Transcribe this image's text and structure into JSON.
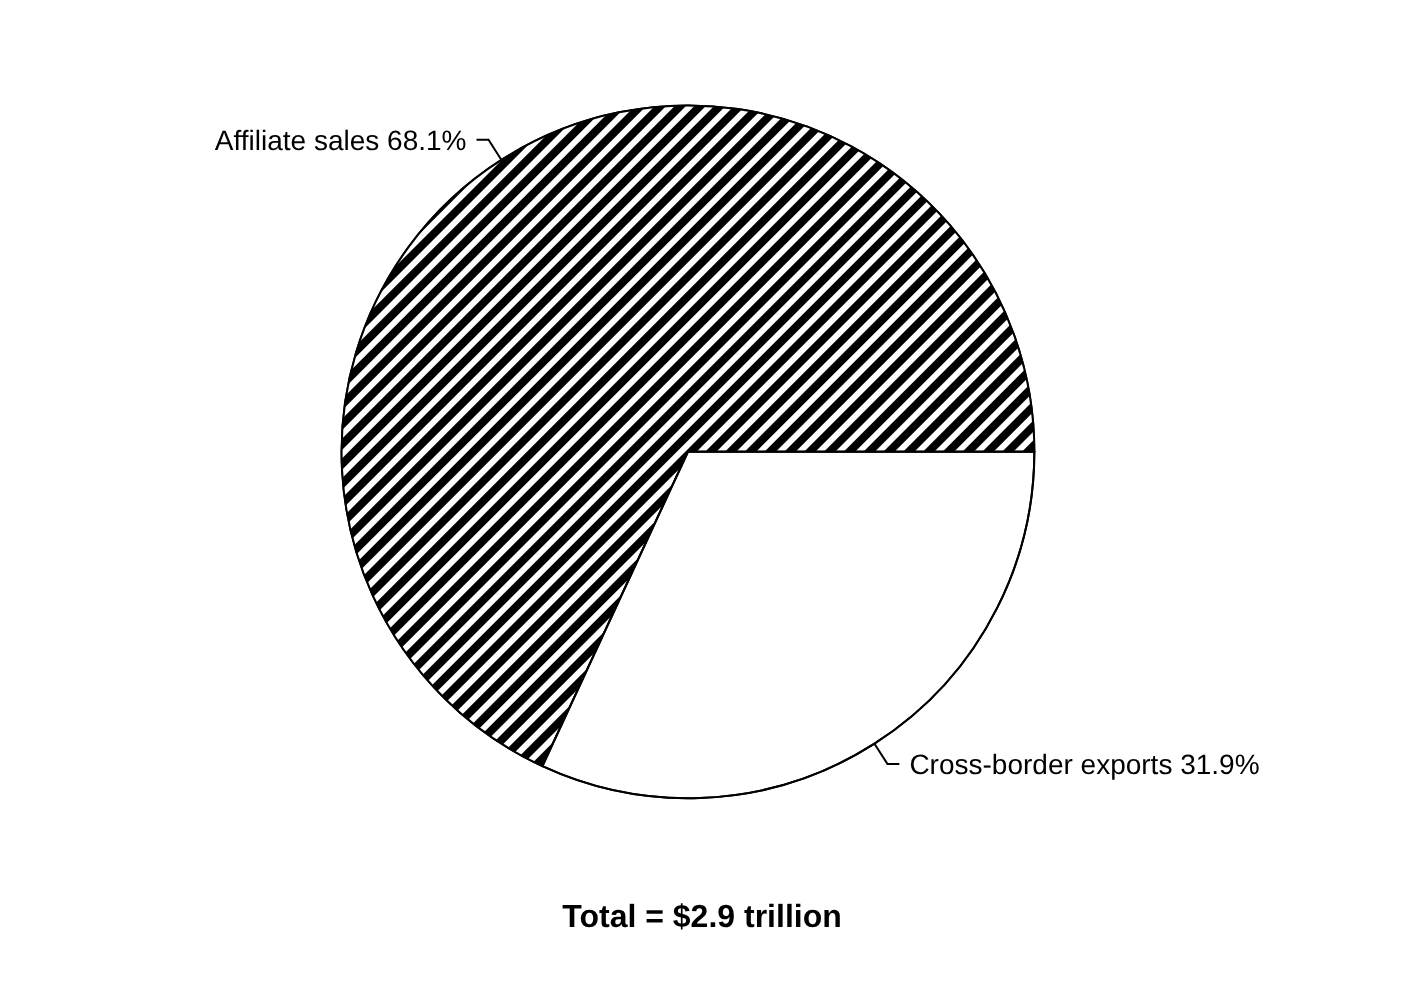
{
  "chart_data": {
    "type": "pie",
    "title": "Total = $2.9 trillion",
    "categories": [
      "Affiliate sales",
      "Cross-border exports"
    ],
    "values": [
      68.1,
      31.9
    ],
    "value_labels": [
      "68.1%",
      "31.9%"
    ],
    "colors": [
      "#000000",
      "#ffffff"
    ]
  }
}
